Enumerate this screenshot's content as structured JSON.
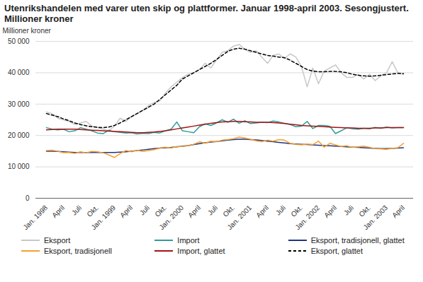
{
  "chart_data": {
    "type": "line",
    "title": "Utenrikshandelen med varer uten skip og plattformer. Januar 1998-april 2003. Sesongjustert. Millioner kroner",
    "y_label": "Millioner kroner",
    "categories": [
      "Jan. 1998",
      null,
      null,
      "April",
      null,
      null,
      "Juli",
      null,
      null,
      "Okt.",
      null,
      null,
      "Jan. 1999",
      null,
      null,
      "April",
      null,
      null,
      "Juli",
      null,
      null,
      "Okt.",
      null,
      null,
      "Jan. 2000",
      null,
      null,
      "April",
      null,
      null,
      "Juli",
      null,
      null,
      "Okt.",
      null,
      null,
      "Jan. 2001",
      null,
      null,
      "April",
      null,
      null,
      "Juli",
      null,
      null,
      "Okt.",
      null,
      null,
      "Jan. 2002",
      null,
      null,
      "April",
      null,
      null,
      "Juli",
      null,
      null,
      "Okt.",
      null,
      null,
      "Jan. 2003",
      null,
      null,
      "April"
    ],
    "ylim": [
      0,
      50000
    ],
    "yticks": [
      0,
      {
        "value": 10000,
        "label": "10 000"
      },
      {
        "value": 20000,
        "label": "20 000"
      },
      {
        "value": 30000,
        "label": "30 000"
      },
      {
        "value": 40000,
        "label": "40 000"
      },
      {
        "value": 50000,
        "label": "50 000"
      }
    ],
    "grid": true,
    "legend": "bottom",
    "series": [
      {
        "name": "Eksport",
        "color": "#c8c8c8",
        "line_style": "solid",
        "values": [
          27500,
          27000,
          25500,
          25000,
          24500,
          23500,
          24000,
          24500,
          23000,
          22500,
          22000,
          21500,
          23000,
          25500,
          24500,
          26000,
          27000,
          28000,
          29500,
          30500,
          31000,
          33500,
          35500,
          37000,
          38500,
          39500,
          40000,
          41000,
          43000,
          41500,
          44000,
          46500,
          47000,
          48500,
          49000,
          47500,
          46500,
          47000,
          45000,
          43000,
          45500,
          46000,
          44500,
          46000,
          45000,
          42000,
          35500,
          41500,
          36500,
          40500,
          41500,
          42500,
          40000,
          38500,
          38500,
          39500,
          38000,
          39500,
          37500,
          39000,
          40000,
          43500,
          40000,
          39500
        ]
      },
      {
        "name": "Import",
        "color": "#2e9c98",
        "line_style": "solid",
        "values": [
          22500,
          22000,
          21800,
          22000,
          21200,
          21500,
          22500,
          22000,
          21500,
          20800,
          20600,
          21700,
          21200,
          21000,
          20800,
          20900,
          20500,
          20700,
          20600,
          21000,
          20800,
          21500,
          22000,
          24300,
          21500,
          21200,
          20900,
          22800,
          23700,
          23200,
          24000,
          25000,
          24200,
          25200,
          23900,
          24700,
          23800,
          24000,
          24200,
          24100,
          24600,
          24300,
          23900,
          23500,
          22800,
          23000,
          24500,
          22200,
          23200,
          23200,
          22900,
          20600,
          21500,
          22500,
          22100,
          22000,
          22300,
          22100,
          22600,
          22300,
          22700,
          22400,
          22500,
          22500
        ]
      },
      {
        "name": "Eksport, tradisjonell, glattet",
        "color": "#1f3580",
        "line_style": "solid",
        "values": [
          15000,
          15000,
          14900,
          14800,
          14700,
          14600,
          14600,
          14600,
          14600,
          14600,
          14600,
          14600,
          14600,
          14700,
          14800,
          15000,
          15200,
          15400,
          15600,
          15800,
          16000,
          16100,
          16200,
          16400,
          16600,
          16800,
          17100,
          17400,
          17700,
          17900,
          18100,
          18300,
          18500,
          18700,
          18800,
          18800,
          18700,
          18600,
          18400,
          18200,
          18000,
          17800,
          17600,
          17400,
          17300,
          17200,
          17100,
          17000,
          16900,
          16800,
          16700,
          16600,
          16500,
          16400,
          16300,
          16200,
          16100,
          16000,
          15900,
          15800,
          15800,
          15900,
          16000,
          16100
        ]
      },
      {
        "name": "Eksport, tradisjonell",
        "color": "#f5a030",
        "line_style": "solid",
        "values": [
          15200,
          15300,
          15000,
          14500,
          14600,
          14300,
          14800,
          14500,
          14900,
          14800,
          14500,
          13800,
          13000,
          14200,
          15200,
          14800,
          15300,
          14900,
          15200,
          15500,
          16000,
          16300,
          16000,
          16500,
          16500,
          16700,
          17200,
          18000,
          17500,
          18200,
          18000,
          18500,
          18700,
          19000,
          19500,
          19200,
          18800,
          18300,
          18000,
          18500,
          18200,
          18700,
          18500,
          17500,
          17200,
          17000,
          17300,
          17100,
          18200,
          16300,
          17500,
          17000,
          16500,
          16700,
          16200,
          16400,
          16600,
          16200,
          15800,
          15700,
          15600,
          15900,
          16100,
          17500
        ]
      },
      {
        "name": "Import, glattet",
        "color": "#a01414",
        "line_style": "solid",
        "values": [
          21800,
          21900,
          22000,
          22000,
          22000,
          22000,
          21900,
          21800,
          21700,
          21600,
          21500,
          21400,
          21300,
          21200,
          21100,
          21000,
          20900,
          20900,
          21000,
          21100,
          21300,
          21500,
          21800,
          22100,
          22400,
          22700,
          23000,
          23300,
          23600,
          23900,
          24100,
          24300,
          24400,
          24500,
          24500,
          24400,
          24300,
          24200,
          24200,
          24200,
          24100,
          24000,
          23800,
          23600,
          23400,
          23200,
          23100,
          23000,
          22900,
          22800,
          22700,
          22600,
          22500,
          22400,
          22400,
          22300,
          22300,
          22300,
          22400,
          22400,
          22500,
          22500,
          22500,
          22500
        ]
      },
      {
        "name": "Eksport, glattet",
        "color": "#000000",
        "line_style": "dashed",
        "values": [
          27000,
          26500,
          26000,
          25300,
          24700,
          24000,
          23500,
          23100,
          22800,
          22600,
          22500,
          22700,
          23200,
          24000,
          25000,
          26000,
          27000,
          28000,
          29000,
          30000,
          31500,
          33000,
          34500,
          36000,
          38000,
          39000,
          40000,
          41000,
          42000,
          43000,
          44200,
          45500,
          46800,
          47500,
          47800,
          47500,
          47000,
          46500,
          46000,
          45500,
          45300,
          45000,
          44800,
          44000,
          43000,
          42000,
          41000,
          40500,
          40300,
          40300,
          40400,
          40400,
          40300,
          40000,
          39500,
          39200,
          39000,
          38900,
          39000,
          39200,
          39400,
          39600,
          39800,
          39700
        ]
      }
    ]
  }
}
